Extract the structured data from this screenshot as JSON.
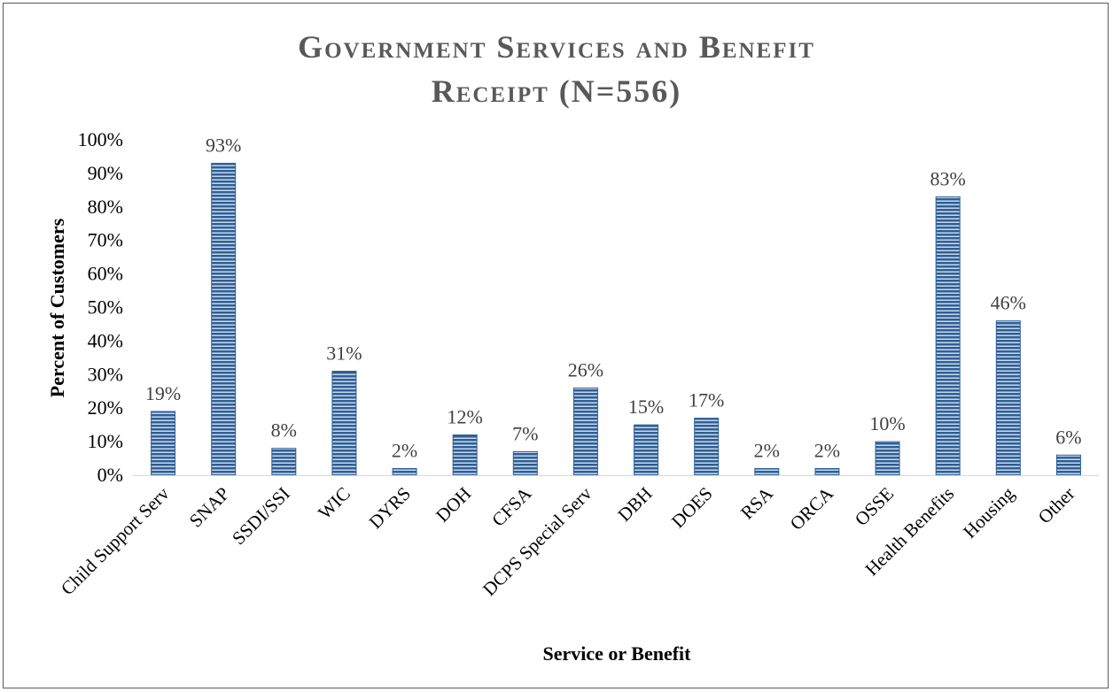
{
  "chart_data": {
    "type": "bar",
    "title_line1": "Government Services and Benefit",
    "title_line2": "Receipt (N=556)",
    "xlabel": "Service or Benefit",
    "ylabel": "Percent of Customers",
    "ylim": [
      0,
      100
    ],
    "yticks": [
      "0%",
      "10%",
      "20%",
      "30%",
      "40%",
      "50%",
      "60%",
      "70%",
      "80%",
      "90%",
      "100%"
    ],
    "categories": [
      "Child Support Serv",
      "SNAP",
      "SSDI/SSI",
      "WIC",
      "DYRS",
      "DOH",
      "CFSA",
      "DCPS Special Serv",
      "DBH",
      "DOES",
      "RSA",
      "ORCA",
      "OSSE",
      "Health Benefits",
      "Housing",
      "Other"
    ],
    "values": [
      19,
      93,
      8,
      31,
      2,
      12,
      7,
      26,
      15,
      17,
      2,
      2,
      10,
      83,
      46,
      6
    ],
    "data_labels": [
      "19%",
      "93%",
      "8%",
      "31%",
      "2%",
      "12%",
      "7%",
      "26%",
      "15%",
      "17%",
      "2%",
      "2%",
      "10%",
      "83%",
      "46%",
      "6%"
    ],
    "grid": false,
    "legend": "none",
    "bar_color": "#2e5f95",
    "bar_stripe_color": "#c9d8ec"
  }
}
